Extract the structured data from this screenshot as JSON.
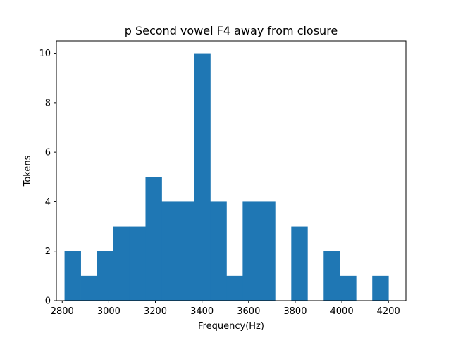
{
  "chart_data": {
    "type": "bar",
    "title": "p Second vowel F4 away from closure",
    "xlabel": "Frequency(Hz)",
    "ylabel": "Tokens",
    "xlim": [
      2775,
      4275
    ],
    "ylim": [
      0,
      10.5
    ],
    "xticks": [
      2800,
      3000,
      3200,
      3400,
      3600,
      3800,
      4000,
      4200
    ],
    "yticks": [
      0,
      2,
      4,
      6,
      8,
      10
    ],
    "grid": false,
    "color": "#1f77b4",
    "bin_width": 69.5,
    "bins": [
      {
        "start": 2810,
        "count": 2
      },
      {
        "start": 2879.5,
        "count": 1
      },
      {
        "start": 2949,
        "count": 2
      },
      {
        "start": 3018.5,
        "count": 3
      },
      {
        "start": 3088,
        "count": 3
      },
      {
        "start": 3157.5,
        "count": 5
      },
      {
        "start": 3227,
        "count": 4
      },
      {
        "start": 3296.5,
        "count": 4
      },
      {
        "start": 3366,
        "count": 10
      },
      {
        "start": 3435.5,
        "count": 4
      },
      {
        "start": 3505,
        "count": 1
      },
      {
        "start": 3574.5,
        "count": 4
      },
      {
        "start": 3644,
        "count": 4
      },
      {
        "start": 3713.5,
        "count": 0
      },
      {
        "start": 3783,
        "count": 3
      },
      {
        "start": 3852.5,
        "count": 0
      },
      {
        "start": 3922,
        "count": 2
      },
      {
        "start": 3991.5,
        "count": 1
      },
      {
        "start": 4061,
        "count": 0
      },
      {
        "start": 4130.5,
        "count": 1
      }
    ]
  }
}
